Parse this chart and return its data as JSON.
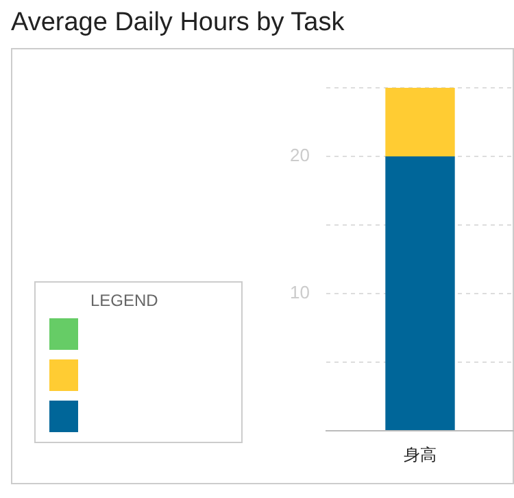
{
  "chart_data": {
    "type": "bar",
    "title": "Average Daily Hours by Task",
    "categories": [
      "身高"
    ],
    "stacked": true,
    "series": [
      {
        "color": "#006699",
        "values": [
          20
        ]
      },
      {
        "color": "#ffcc33",
        "values": [
          5
        ]
      },
      {
        "color": "#66cc66",
        "values": [
          0
        ]
      }
    ],
    "ylim": [
      0,
      25
    ],
    "yticks": [
      {
        "value": 0,
        "label": null
      },
      {
        "value": 5,
        "label": null
      },
      10,
      {
        "value": 15,
        "label": null
      },
      20,
      {
        "value": 25,
        "label": null
      }
    ],
    "grid": "y",
    "annotations": [
      "LEGEND"
    ]
  }
}
